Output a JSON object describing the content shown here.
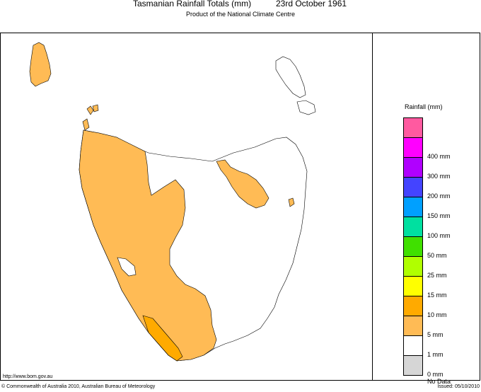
{
  "header": {
    "title": "Tasmanian Rainfall Totals (mm)",
    "date": "23rd October 1961",
    "subtitle": "Product of the National Climate Centre"
  },
  "footer": {
    "url": "http://www.bom.gov.au",
    "copyright": "© Commonwealth of Australia 2010, Australian Bureau of Meteorology",
    "issued": "Issued: 05/10/2010"
  },
  "legend": {
    "title": "Rainfall (mm)",
    "items": [
      {
        "label": "",
        "color": "#ff5aa0"
      },
      {
        "label": "400 mm",
        "color": "#ff00ff"
      },
      {
        "label": "300 mm",
        "color": "#b000ff"
      },
      {
        "label": "200 mm",
        "color": "#4444ff"
      },
      {
        "label": "150 mm",
        "color": "#00a0ff"
      },
      {
        "label": "100 mm",
        "color": "#00e0a0"
      },
      {
        "label": "50 mm",
        "color": "#40e000"
      },
      {
        "label": "25 mm",
        "color": "#b0ff00"
      },
      {
        "label": "15 mm",
        "color": "#ffff00"
      },
      {
        "label": "10 mm",
        "color": "#ffaa00"
      },
      {
        "label": "5 mm",
        "color": "#ffbb55"
      },
      {
        "label": "1 mm",
        "color": "#ffffff"
      },
      {
        "label": "0 mm",
        "color": "#d6d6d6"
      },
      {
        "label": "No Data",
        "color": ""
      }
    ]
  },
  "map_colors": {
    "band_1_5": "#ffbb55",
    "band_5_10": "#ffaa00",
    "band_0_1": "#ffffff"
  }
}
